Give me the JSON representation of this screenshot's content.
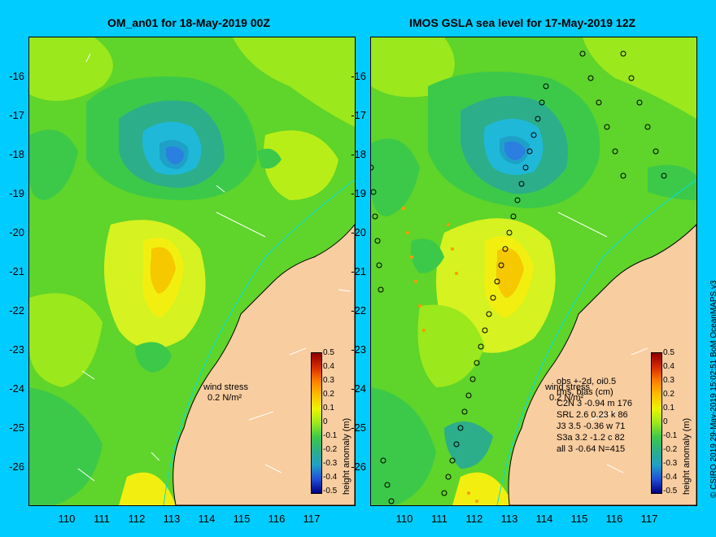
{
  "left_panel": {
    "title": "OM_an01 for 18-May-2019 00Z",
    "wind_label": "wind stress",
    "wind_value": "0.2 N/m²"
  },
  "right_panel": {
    "title": "IMOS GSLA sea level  for 17-May-2019 12Z",
    "wind_label": "wind stress",
    "wind_value": "0.2 N/m²",
    "obs_lines": [
      "obs +-2d, oi0.5",
      "rms, bias (cm)",
      "C2N   3 -0.94 m 176",
      "SRL   2.6 0.23 k 86",
      "J3    3.5 -0.36 w 71",
      "S3a   3.2 -1.2 c 82",
      "all   3 -0.64 N=415"
    ]
  },
  "y_ticks": [
    "-16",
    "-17",
    "-18",
    "-19",
    "-20",
    "-21",
    "-22",
    "-23",
    "-24",
    "-25",
    "-26"
  ],
  "x_ticks_left": [
    "110",
    "111",
    "112",
    "113",
    "114",
    "115",
    "116",
    "117"
  ],
  "x_ticks_right": [
    "110",
    "111",
    "112",
    "113",
    "114",
    "115",
    "116",
    "117"
  ],
  "colorbar": {
    "labels": [
      "0.5",
      "0.4",
      "0.3",
      "0.2",
      "0.1",
      "0",
      "-0.1",
      "-0.2",
      "-0.3",
      "-0.4",
      "-0.5"
    ],
    "title": "height anomaly (m)",
    "colors": [
      "#8b0000",
      "#d42a00",
      "#ff7f00",
      "#ffbf00",
      "#eaf500",
      "#9be81c",
      "#3cc94a",
      "#2cae8a",
      "#1fa0c8",
      "#2050d8",
      "#000080"
    ]
  },
  "credit": "© CSIRO 2019   29-May-2019 15:02:51  BoM OceanMAPS v3",
  "map_colors": {
    "ocean_base": "#5fd42a",
    "land": "#f8cda0",
    "coast_line": "#00e0e0",
    "high_yellow": "#f2ef10",
    "high_orange": "#f5c800",
    "low_green": "#33b84e",
    "low_teal": "#2aaea0",
    "low_cyan": "#1fb8d8",
    "low_blue": "#2a7fe0"
  }
}
